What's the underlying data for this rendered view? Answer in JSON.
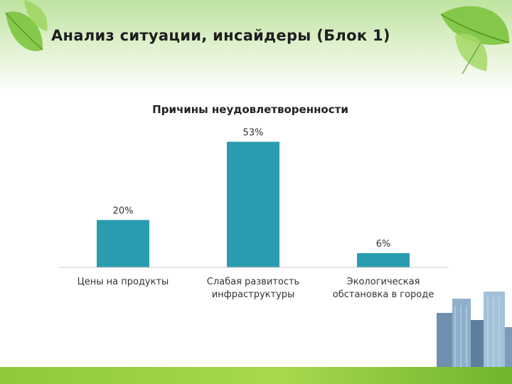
{
  "slide": {
    "title": "Анализ ситуации, инсайдеры (Блок 1)"
  },
  "chart_data": {
    "type": "bar",
    "title": "Причины неудовлетворенности",
    "categories": [
      [
        "Цены на продукты"
      ],
      [
        "Слабая развитость",
        "инфраструктуры"
      ],
      [
        "Экологическая",
        "обстановка в городе"
      ]
    ],
    "values": [
      20,
      53,
      6
    ],
    "value_labels": [
      "20%",
      "53%",
      "6%"
    ],
    "ylim": [
      0,
      60
    ],
    "grid": false,
    "bar_color": "#2a9cb0"
  }
}
